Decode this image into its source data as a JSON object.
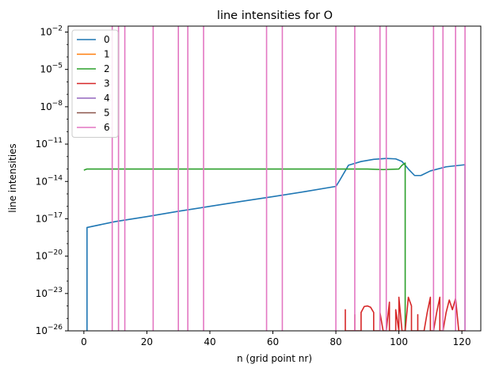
{
  "chart_data": {
    "type": "line",
    "title": "line intensities for O",
    "xlabel": "n (grid point nr)",
    "ylabel": "line intensities",
    "yscale": "log",
    "xlim": [
      -5,
      126
    ],
    "ylim": [
      1e-26,
      0.03
    ],
    "xticks": [
      0,
      20,
      40,
      60,
      80,
      100,
      120
    ],
    "xtick_labels": [
      "0",
      "20",
      "40",
      "60",
      "80",
      "100",
      "120"
    ],
    "yticks": [
      1e-26,
      1e-23,
      1e-20,
      1e-17,
      1e-14,
      1e-11,
      1e-08,
      1e-05,
      0.01
    ],
    "ytick_labels": [
      {
        "base": "10",
        "exp": "−26"
      },
      {
        "base": "10",
        "exp": "−23"
      },
      {
        "base": "10",
        "exp": "−20"
      },
      {
        "base": "10",
        "exp": "−17"
      },
      {
        "base": "10",
        "exp": "−14"
      },
      {
        "base": "10",
        "exp": "−11"
      },
      {
        "base": "10",
        "exp": "−8"
      },
      {
        "base": "10",
        "exp": "−5"
      },
      {
        "base": "10",
        "exp": "−2"
      }
    ],
    "grid": false,
    "legend_position": "top-left",
    "series": [
      {
        "name": "0",
        "color": "#1f77b4",
        "x": [
          1,
          1,
          10,
          20,
          30,
          40,
          50,
          60,
          70,
          80,
          81,
          84,
          88,
          92,
          96,
          99,
          101,
          103,
          105,
          107,
          110,
          115,
          121,
          121
        ],
        "y": [
          1e-26,
          2e-18,
          6e-18,
          1.5e-17,
          4e-17,
          1e-16,
          2.5e-16,
          6e-16,
          1.5e-15,
          4e-15,
          1e-14,
          2e-13,
          4e-13,
          6e-13,
          7e-13,
          6.5e-13,
          4e-13,
          1e-13,
          3e-14,
          3e-14,
          7e-14,
          1.5e-13,
          2.2e-13,
          1e-26
        ]
      },
      {
        "name": "1",
        "color": "#ff7f0e",
        "x": [],
        "y": []
      },
      {
        "name": "2",
        "color": "#2ca02c",
        "x": [
          0,
          1,
          10,
          20,
          30,
          40,
          50,
          60,
          70,
          80,
          85,
          90,
          95,
          100,
          101,
          102,
          102
        ],
        "y": [
          8e-14,
          1e-13,
          1e-13,
          1e-13,
          1e-13,
          1e-13,
          1e-13,
          1e-13,
          1e-13,
          1e-13,
          1e-13,
          1e-13,
          9e-14,
          1e-13,
          2e-13,
          3e-13,
          1e-26
        ]
      },
      {
        "name": "3",
        "color": "#d62728",
        "x": [
          83,
          83,
          83,
          86,
          86,
          86,
          88,
          88,
          89,
          90,
          91,
          92,
          92,
          94,
          94,
          95,
          96,
          97,
          97,
          99,
          99,
          100,
          100,
          101,
          102,
          103,
          104,
          104,
          106,
          106,
          106,
          108,
          109,
          110,
          110,
          111,
          112,
          113,
          113,
          114,
          115,
          116,
          117,
          118,
          119,
          120,
          121
        ],
        "y": [
          1e-26,
          5e-25,
          1e-26,
          1e-26,
          2e-25,
          1e-26,
          1e-26,
          3e-25,
          9e-25,
          1e-24,
          8e-25,
          3e-25,
          1e-26,
          1e-26,
          3e-25,
          1e-26,
          1e-26,
          2e-24,
          1e-26,
          1e-26,
          5e-25,
          1e-26,
          5e-24,
          1e-26,
          1e-26,
          5e-24,
          1e-24,
          1e-26,
          1e-26,
          2e-25,
          1e-26,
          1e-26,
          3e-25,
          5e-24,
          1e-26,
          1e-26,
          3e-25,
          5e-24,
          1e-26,
          1e-26,
          3e-25,
          3e-24,
          5e-25,
          4e-24,
          1e-26,
          1e-26,
          1e-26
        ]
      },
      {
        "name": "4",
        "color": "#9467bd",
        "x": [],
        "y": []
      },
      {
        "name": "5",
        "color": "#8c564b",
        "x": [],
        "y": []
      },
      {
        "name": "6",
        "color": "#e377c2",
        "spike_x": [
          9,
          11,
          13,
          22,
          30,
          33,
          38,
          58,
          63,
          80,
          86,
          94,
          96,
          111,
          114,
          118,
          121
        ],
        "spike_top": 0.03,
        "spike_bottom": 1e-26
      }
    ]
  }
}
